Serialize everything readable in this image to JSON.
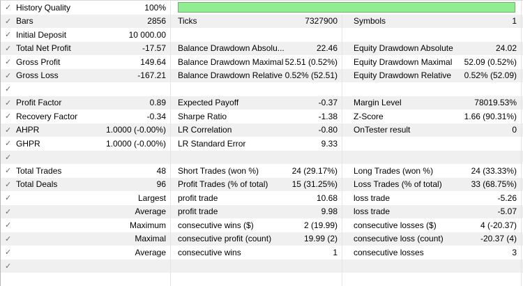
{
  "app": "strategy-tester-backtest-results",
  "icons": {
    "check_glyph": "✓"
  },
  "colors": {
    "row_stripe": "#f0f0f0",
    "separator": "#e4e4e4",
    "progress_fill": "#90ee90",
    "progress_border": "#79a879",
    "check": "#6a6a6a",
    "text": "#000000"
  },
  "progress_bar": {
    "metric": "History Quality",
    "fill_percent": 100
  },
  "rows": [
    {
      "left": {
        "check": true,
        "label": "History Quality",
        "value": "100%"
      },
      "progress": {
        "fill_percent": 100
      }
    },
    {
      "left": {
        "check": true,
        "label": "Bars",
        "value": "2856"
      },
      "mid": {
        "label": "Ticks",
        "value": "7327900"
      },
      "right": {
        "label": "Symbols",
        "value": "1"
      }
    },
    {
      "left": {
        "check": true,
        "label": "Initial Deposit",
        "value": "10 000.00"
      },
      "mid": {
        "label": "",
        "value": ""
      },
      "right": {
        "label": "",
        "value": ""
      }
    },
    {
      "left": {
        "check": true,
        "label": "Total Net Profit",
        "value": "-17.57"
      },
      "mid": {
        "label": "Balance Drawdown Absolu...",
        "value": "22.46"
      },
      "right": {
        "label": "Equity Drawdown Absolute",
        "value": "24.02"
      }
    },
    {
      "left": {
        "check": true,
        "label": "Gross Profit",
        "value": "149.64"
      },
      "mid": {
        "label": "Balance Drawdown Maximal",
        "value": "52.51 (0.52%)"
      },
      "right": {
        "label": "Equity Drawdown Maximal",
        "value": "52.09 (0.52%)"
      }
    },
    {
      "left": {
        "check": true,
        "label": "Gross Loss",
        "value": "-167.21"
      },
      "mid": {
        "label": "Balance Drawdown Relative",
        "value": "0.52% (52.51)"
      },
      "right": {
        "label": "Equity Drawdown Relative",
        "value": "0.52% (52.09)"
      }
    },
    {
      "left": {
        "check": true,
        "label": "",
        "value": ""
      },
      "mid": {
        "label": "",
        "value": ""
      },
      "right": {
        "label": "",
        "value": ""
      }
    },
    {
      "left": {
        "check": true,
        "label": "Profit Factor",
        "value": "0.89"
      },
      "mid": {
        "label": "Expected Payoff",
        "value": "-0.37"
      },
      "right": {
        "label": "Margin Level",
        "value": "78019.53%"
      }
    },
    {
      "left": {
        "check": true,
        "label": "Recovery Factor",
        "value": "-0.34"
      },
      "mid": {
        "label": "Sharpe Ratio",
        "value": "-1.38"
      },
      "right": {
        "label": "Z-Score",
        "value": "1.66 (90.31%)"
      }
    },
    {
      "left": {
        "check": true,
        "label": "AHPR",
        "value": "1.0000 (-0.00%)"
      },
      "mid": {
        "label": "LR Correlation",
        "value": "-0.80"
      },
      "right": {
        "label": "OnTester result",
        "value": "0"
      }
    },
    {
      "left": {
        "check": true,
        "label": "GHPR",
        "value": "1.0000 (-0.00%)"
      },
      "mid": {
        "label": "LR Standard Error",
        "value": "9.33"
      },
      "right": {
        "label": "",
        "value": ""
      }
    },
    {
      "left": {
        "check": true,
        "label": "",
        "value": ""
      },
      "mid": {
        "label": "",
        "value": ""
      },
      "right": {
        "label": "",
        "value": ""
      }
    },
    {
      "left": {
        "check": true,
        "label": "Total Trades",
        "value": "48"
      },
      "mid": {
        "label": "Short Trades (won %)",
        "value": "24 (29.17%)"
      },
      "right": {
        "label": "Long Trades (won %)",
        "value": "24 (33.33%)"
      }
    },
    {
      "left": {
        "check": true,
        "label": "Total Deals",
        "value": "96"
      },
      "mid": {
        "label": "Profit Trades (% of total)",
        "value": "15 (31.25%)"
      },
      "right": {
        "label": "Loss Trades (% of total)",
        "value": "33 (68.75%)"
      }
    },
    {
      "left": {
        "check": true,
        "label": "",
        "value": "Largest"
      },
      "mid": {
        "label": "profit trade",
        "value": "10.68"
      },
      "right": {
        "label": "loss trade",
        "value": "-5.26"
      }
    },
    {
      "left": {
        "check": true,
        "label": "",
        "value": "Average"
      },
      "mid": {
        "label": "profit trade",
        "value": "9.98"
      },
      "right": {
        "label": "loss trade",
        "value": "-5.07"
      }
    },
    {
      "left": {
        "check": true,
        "label": "",
        "value": "Maximum"
      },
      "mid": {
        "label": "consecutive wins ($)",
        "value": "2 (19.99)"
      },
      "right": {
        "label": "consecutive losses ($)",
        "value": "4 (-20.37)"
      }
    },
    {
      "left": {
        "check": true,
        "label": "",
        "value": "Maximal"
      },
      "mid": {
        "label": "consecutive profit (count)",
        "value": "19.99 (2)"
      },
      "right": {
        "label": "consecutive loss (count)",
        "value": "-20.37 (4)"
      }
    },
    {
      "left": {
        "check": true,
        "label": "",
        "value": "Average"
      },
      "mid": {
        "label": "consecutive wins",
        "value": "1"
      },
      "right": {
        "label": "consecutive losses",
        "value": "3"
      }
    },
    {
      "left": {
        "check": true,
        "label": "",
        "value": ""
      },
      "mid": {
        "label": "",
        "value": ""
      },
      "right": {
        "label": "",
        "value": ""
      }
    },
    {
      "partial": true
    }
  ]
}
